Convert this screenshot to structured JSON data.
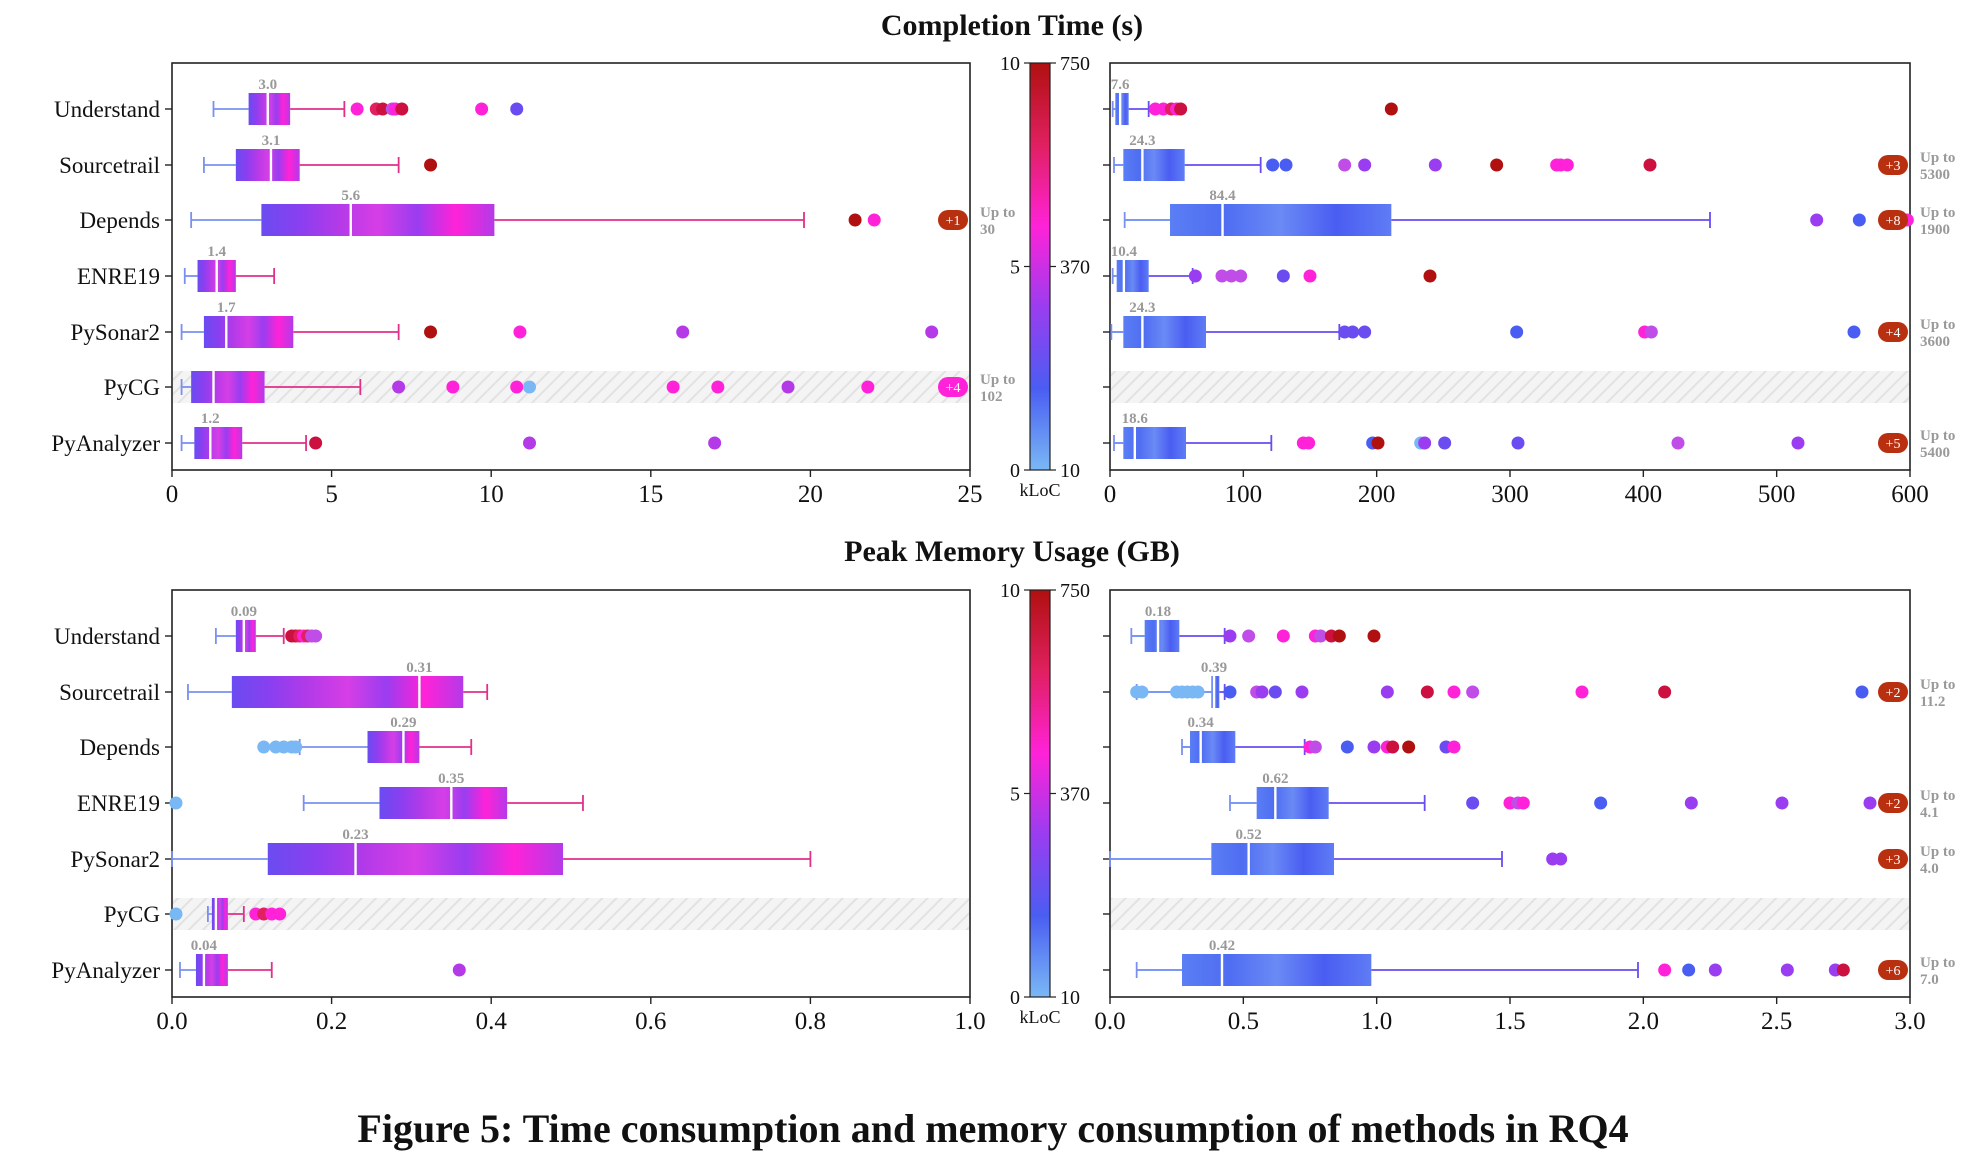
{
  "caption": "Figure 5: Time consumption and memory consumption of methods in RQ4",
  "methods": [
    "Understand",
    "Sourcetrail",
    "Depends",
    "ENRE19",
    "PySonar2",
    "PyCG",
    "PyAnalyzer"
  ],
  "colorbar": {
    "left_ticks": [
      "0",
      "5",
      "10"
    ],
    "right_ticks": [
      "10",
      "370",
      "750"
    ],
    "unit": "kLoC",
    "colors": [
      "#7ab8f5",
      "#4a5df2",
      "#9a3df0",
      "#ff22d8",
      "#e02060",
      "#b01010"
    ]
  },
  "hatch_label": "PyCG",
  "chart_data": [
    {
      "type": "boxplot",
      "title": "Completion Time (s)",
      "panel": "top-left",
      "xlim": [
        0,
        25
      ],
      "xticks": [
        "0",
        "5",
        "10",
        "15",
        "20",
        "25"
      ],
      "boxes": [
        {
          "method": "Understand",
          "whisker_lo": 1.3,
          "q1": 2.4,
          "median": 3.0,
          "q3": 3.7,
          "whisker_hi": 5.4,
          "label": "3.0",
          "outliers": [
            5.8,
            6.4,
            6.6,
            6.9,
            7.0,
            7.2,
            9.7,
            10.8
          ],
          "outlier_colors": [
            "#ff22d8",
            "#e02060",
            "#cc1040",
            "#c04de8",
            "#ff22d8",
            "#cc1040",
            "#ff22d8",
            "#6a4cf0"
          ]
        },
        {
          "method": "Sourcetrail",
          "whisker_lo": 1.0,
          "q1": 2.0,
          "median": 3.1,
          "q3": 4.0,
          "whisker_hi": 7.1,
          "label": "3.1",
          "outliers": [
            8.1
          ],
          "outlier_colors": [
            "#b01010"
          ]
        },
        {
          "method": "Depends",
          "whisker_lo": 0.6,
          "q1": 2.8,
          "median": 5.6,
          "q3": 10.1,
          "whisker_hi": 19.8,
          "label": "5.6",
          "outliers": [
            21.4,
            22.0
          ],
          "outlier_colors": [
            "#b01010",
            "#ff22d8"
          ],
          "overflow_badge": "+1",
          "upto": [
            "Up to",
            "30"
          ],
          "badge_color": "#b83010"
        },
        {
          "method": "ENRE19",
          "whisker_lo": 0.4,
          "q1": 0.8,
          "median": 1.4,
          "q3": 2.0,
          "whisker_hi": 3.2,
          "label": "1.4",
          "outliers": [],
          "outlier_colors": []
        },
        {
          "method": "PySonar2",
          "whisker_lo": 0.3,
          "q1": 1.0,
          "median": 1.7,
          "q3": 3.8,
          "whisker_hi": 7.1,
          "label": "1.7",
          "outliers": [
            8.1,
            10.9,
            16.0,
            23.8
          ],
          "outlier_colors": [
            "#b01010",
            "#ff22d8",
            "#b43ae8",
            "#b43ae8"
          ]
        },
        {
          "method": "PyCG",
          "whisker_lo": 0.3,
          "q1": 0.6,
          "median": 1.3,
          "q3": 2.9,
          "whisker_hi": 5.9,
          "label": "",
          "outliers": [
            7.1,
            8.8,
            10.8,
            11.2,
            15.7,
            17.1,
            19.3,
            21.8
          ],
          "outlier_colors": [
            "#b43ae8",
            "#ff22d8",
            "#ff22d8",
            "#7ab8f5",
            "#ff22d8",
            "#ff22d8",
            "#b43ae8",
            "#ff22d8"
          ],
          "overflow_badge": "+4",
          "upto": [
            "Up to",
            "102"
          ],
          "badge_color": "#ff22d8"
        },
        {
          "method": "PyAnalyzer",
          "whisker_lo": 0.3,
          "q1": 0.7,
          "median": 1.2,
          "q3": 2.2,
          "whisker_hi": 4.2,
          "label": "1.2",
          "outliers": [
            4.5,
            11.2,
            17.0
          ],
          "outlier_colors": [
            "#cc1040",
            "#b43ae8",
            "#b43ae8"
          ]
        }
      ]
    },
    {
      "type": "boxplot",
      "title": "Completion Time (s)",
      "panel": "top-right",
      "xlim": [
        0,
        600
      ],
      "xticks": [
        "0",
        "100",
        "200",
        "300",
        "400",
        "500",
        "600"
      ],
      "boxes": [
        {
          "method": "Understand",
          "whisker_lo": 2,
          "q1": 4,
          "median": 7.6,
          "q3": 14,
          "whisker_hi": 29,
          "label": "7.6",
          "outliers": [
            34,
            40,
            46,
            50,
            53,
            211
          ],
          "outlier_colors": [
            "#ff22d8",
            "#ff22d8",
            "#e02060",
            "#ff22d8",
            "#cc1040",
            "#b01010"
          ]
        },
        {
          "method": "Sourcetrail",
          "whisker_lo": 3,
          "q1": 10,
          "median": 24.3,
          "q3": 56,
          "whisker_hi": 113,
          "label": "24.3",
          "outliers": [
            122,
            132,
            176,
            191,
            244,
            290,
            335,
            338,
            343,
            405
          ],
          "outlier_colors": [
            "#4a5df2",
            "#4a5df2",
            "#c04de8",
            "#9a3df0",
            "#9a3df0",
            "#b01010",
            "#ff22d8",
            "#ff22d8",
            "#ff22d8",
            "#cc1040"
          ],
          "overflow_badge": "+3",
          "upto": [
            "Up to",
            "5300"
          ],
          "badge_color": "#b83010"
        },
        {
          "method": "Depends",
          "whisker_lo": 11,
          "q1": 45,
          "median": 84.4,
          "q3": 211,
          "whisker_hi": 450,
          "label": "84.4",
          "outliers": [
            530,
            562,
            598
          ],
          "outlier_colors": [
            "#9a3df0",
            "#4a5df2",
            "#ff22d8"
          ],
          "overflow_badge": "+8",
          "upto": [
            "Up to",
            "1900"
          ],
          "badge_color": "#b83010"
        },
        {
          "method": "ENRE19",
          "whisker_lo": 2,
          "q1": 5,
          "median": 10.4,
          "q3": 29,
          "whisker_hi": 62,
          "label": "10.4",
          "outliers": [
            64,
            84,
            91,
            98,
            130,
            150,
            240
          ],
          "outlier_colors": [
            "#9a3df0",
            "#c04de8",
            "#c04de8",
            "#c04de8",
            "#6a4cf0",
            "#ff22d8",
            "#b01010"
          ]
        },
        {
          "method": "PySonar2",
          "whisker_lo": 1,
          "q1": 10,
          "median": 24.3,
          "q3": 72,
          "whisker_hi": 172,
          "label": "24.3",
          "outliers": [
            176,
            182,
            191,
            305,
            401,
            406,
            558
          ],
          "outlier_colors": [
            "#6a4cf0",
            "#6a4cf0",
            "#6a4cf0",
            "#4a5df2",
            "#ff22d8",
            "#c04de8",
            "#4a5df2"
          ],
          "overflow_badge": "+4",
          "upto": [
            "Up to",
            "3600"
          ],
          "badge_color": "#b83010"
        },
        {
          "method": "PyCG",
          "whisker_lo": null,
          "q1": null,
          "median": null,
          "q3": null,
          "whisker_hi": null,
          "label": "",
          "outliers": [],
          "outlier_colors": []
        },
        {
          "method": "PyAnalyzer",
          "whisker_lo": 3,
          "q1": 10,
          "median": 18.6,
          "q3": 57,
          "whisker_hi": 121,
          "label": "18.6",
          "outliers": [
            145,
            149,
            197,
            201,
            233,
            236,
            251,
            306,
            426,
            516
          ],
          "outlier_colors": [
            "#ff22d8",
            "#ff22d8",
            "#4a5df2",
            "#b01010",
            "#7ab8f5",
            "#9a3df0",
            "#6a4cf0",
            "#6a4cf0",
            "#c04de8",
            "#9a3df0"
          ],
          "overflow_badge": "+5",
          "upto": [
            "Up to",
            "5400"
          ],
          "badge_color": "#b83010"
        }
      ]
    },
    {
      "type": "boxplot",
      "title": "Peak Memory Usage (GB)",
      "panel": "bottom-left",
      "xlim": [
        0,
        1.0
      ],
      "xticks": [
        "0.0",
        "0.2",
        "0.4",
        "0.6",
        "0.8",
        "1.0"
      ],
      "boxes": [
        {
          "method": "Understand",
          "whisker_lo": 0.055,
          "q1": 0.08,
          "median": 0.09,
          "q3": 0.105,
          "whisker_hi": 0.14,
          "label": "0.09",
          "outliers": [
            0.15,
            0.155,
            0.16,
            0.165,
            0.17,
            0.175,
            0.18
          ],
          "outlier_colors": [
            "#cc1040",
            "#cc1040",
            "#e02060",
            "#ff22d8",
            "#e02060",
            "#c04de8",
            "#c04de8"
          ]
        },
        {
          "method": "Sourcetrail",
          "whisker_lo": 0.02,
          "q1": 0.075,
          "median": 0.31,
          "q3": 0.365,
          "whisker_hi": 0.395,
          "label": "0.31",
          "outliers": [],
          "outlier_colors": []
        },
        {
          "method": "Depends",
          "whisker_lo": 0.16,
          "q1": 0.245,
          "median": 0.29,
          "q3": 0.31,
          "whisker_hi": 0.375,
          "label": "0.29",
          "outliers": [
            0.115,
            0.13,
            0.14,
            0.15,
            0.155
          ],
          "outlier_colors": [
            "#7ab8f5",
            "#7ab8f5",
            "#7ab8f5",
            "#7ab8f5",
            "#7ab8f5"
          ]
        },
        {
          "method": "ENRE19",
          "whisker_lo": 0.165,
          "q1": 0.26,
          "median": 0.35,
          "q3": 0.42,
          "whisker_hi": 0.515,
          "label": "0.35",
          "outliers": [
            0.005
          ],
          "outlier_colors": [
            "#7ab8f5"
          ]
        },
        {
          "method": "PySonar2",
          "whisker_lo": 0.0,
          "q1": 0.12,
          "median": 0.23,
          "q3": 0.49,
          "whisker_hi": 0.8,
          "label": "0.23",
          "outliers": [],
          "outlier_colors": []
        },
        {
          "method": "PyCG",
          "whisker_lo": 0.045,
          "q1": 0.05,
          "median": 0.055,
          "q3": 0.07,
          "whisker_hi": 0.09,
          "label": "",
          "outliers": [
            0.005,
            0.105,
            0.115,
            0.125,
            0.135
          ],
          "outlier_colors": [
            "#7ab8f5",
            "#ff22d8",
            "#e02060",
            "#ff22d8",
            "#ff22d8"
          ]
        },
        {
          "method": "PyAnalyzer",
          "whisker_lo": 0.01,
          "q1": 0.03,
          "median": 0.04,
          "q3": 0.07,
          "whisker_hi": 0.125,
          "label": "0.04",
          "outliers": [
            0.36
          ],
          "outlier_colors": [
            "#b43ae8"
          ]
        }
      ]
    },
    {
      "type": "boxplot",
      "title": "Peak Memory Usage (GB)",
      "panel": "bottom-right",
      "xlim": [
        0,
        3.0
      ],
      "xticks": [
        "0.0",
        "0.5",
        "1.0",
        "1.5",
        "2.0",
        "2.5",
        "3.0"
      ],
      "boxes": [
        {
          "method": "Understand",
          "whisker_lo": 0.08,
          "q1": 0.13,
          "median": 0.18,
          "q3": 0.26,
          "whisker_hi": 0.43,
          "label": "0.18",
          "outliers": [
            0.45,
            0.52,
            0.65,
            0.77,
            0.79,
            0.83,
            0.86,
            0.99
          ],
          "outlier_colors": [
            "#9a3df0",
            "#c04de8",
            "#ff22d8",
            "#ff22d8",
            "#c04de8",
            "#cc1040",
            "#b01010",
            "#b01010"
          ]
        },
        {
          "method": "Sourcetrail",
          "whisker_lo": 0.1,
          "q1": 0.38,
          "median": 0.39,
          "q3": 0.41,
          "whisker_hi": 0.43,
          "label": "0.39",
          "outliers": [
            0.1,
            0.12,
            0.25,
            0.27,
            0.29,
            0.31,
            0.33,
            0.45,
            0.55,
            0.57,
            0.62,
            0.72,
            1.04,
            1.19,
            1.29,
            1.36,
            1.77,
            2.08,
            2.82
          ],
          "outlier_colors": [
            "#7ab8f5",
            "#7ab8f5",
            "#7ab8f5",
            "#7ab8f5",
            "#7ab8f5",
            "#7ab8f5",
            "#7ab8f5",
            "#4a5df2",
            "#c04de8",
            "#9a3df0",
            "#6a4cf0",
            "#9a3df0",
            "#9a3df0",
            "#cc1040",
            "#ff22d8",
            "#c04de8",
            "#ff22d8",
            "#cc1040",
            "#4a5df2"
          ],
          "overflow_badge": "+2",
          "upto": [
            "Up to",
            "11.2"
          ],
          "badge_color": "#b83010"
        },
        {
          "method": "Depends",
          "whisker_lo": 0.27,
          "q1": 0.3,
          "median": 0.34,
          "q3": 0.47,
          "whisker_hi": 0.73,
          "label": "0.34",
          "outliers": [
            0.75,
            0.77,
            0.89,
            0.99,
            1.04,
            1.06,
            1.12,
            1.26,
            1.29
          ],
          "outlier_colors": [
            "#ff22d8",
            "#c04de8",
            "#4a5df2",
            "#9a3df0",
            "#ff22d8",
            "#cc1040",
            "#b01010",
            "#6a4cf0",
            "#ff22d8"
          ]
        },
        {
          "method": "ENRE19",
          "whisker_lo": 0.45,
          "q1": 0.55,
          "median": 0.62,
          "q3": 0.82,
          "whisker_hi": 1.18,
          "label": "0.62",
          "outliers": [
            1.36,
            1.5,
            1.53,
            1.55,
            1.84,
            2.18,
            2.52,
            2.85
          ],
          "outlier_colors": [
            "#6a4cf0",
            "#ff22d8",
            "#c04de8",
            "#ff22d8",
            "#4a5df2",
            "#9a3df0",
            "#9a3df0",
            "#9a3df0"
          ],
          "overflow_badge": "+2",
          "upto": [
            "Up to",
            "4.1"
          ],
          "badge_color": "#b83010"
        },
        {
          "method": "PySonar2",
          "whisker_lo": 0.0,
          "q1": 0.38,
          "median": 0.52,
          "q3": 0.84,
          "whisker_hi": 1.47,
          "label": "0.52",
          "outliers": [
            1.66,
            1.69
          ],
          "outlier_colors": [
            "#9a3df0",
            "#9a3df0"
          ],
          "overflow_badge": "+3",
          "upto": [
            "Up to",
            "4.0"
          ],
          "badge_color": "#b83010"
        },
        {
          "method": "PyCG",
          "whisker_lo": null,
          "q1": null,
          "median": null,
          "q3": null,
          "whisker_hi": null,
          "label": "",
          "outliers": [],
          "outlier_colors": []
        },
        {
          "method": "PyAnalyzer",
          "whisker_lo": 0.1,
          "q1": 0.27,
          "median": 0.42,
          "q3": 0.98,
          "whisker_hi": 1.98,
          "label": "0.42",
          "outliers": [
            2.08,
            2.17,
            2.27,
            2.54,
            2.72,
            2.75
          ],
          "outlier_colors": [
            "#ff22d8",
            "#4a5df2",
            "#9a3df0",
            "#9a3df0",
            "#9a3df0",
            "#cc1040"
          ],
          "overflow_badge": "+6",
          "upto": [
            "Up to",
            "7.0"
          ],
          "badge_color": "#b83010"
        }
      ]
    }
  ]
}
